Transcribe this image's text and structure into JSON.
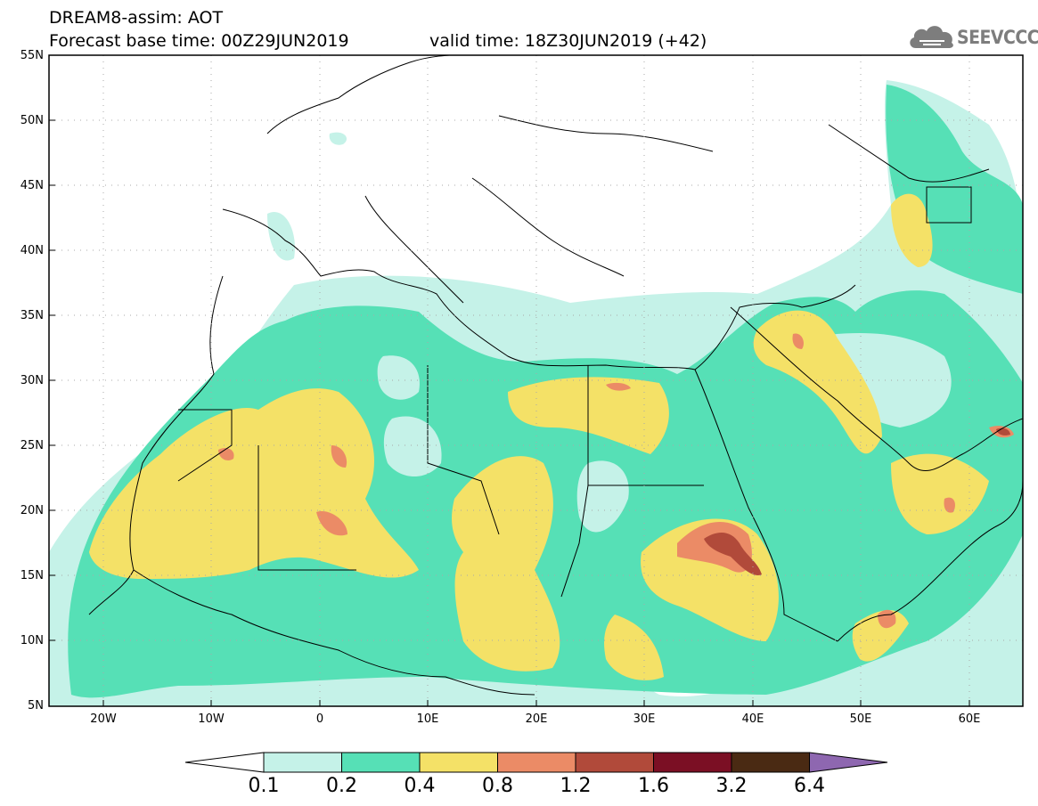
{
  "title": {
    "product": "DREAM8-assim: AOT",
    "base_time": "Forecast base time: 00Z29JUN2019",
    "valid_time": "valid time: 18Z30JUN2019 (+42)"
  },
  "logo": {
    "text": "SEEVCCC",
    "icon": "cloud-icon",
    "color": "#7d7d7d"
  },
  "map": {
    "lon_range": [
      -25,
      65
    ],
    "lat_range": [
      5,
      55
    ],
    "lat_ticks": [
      "55N",
      "50N",
      "45N",
      "40N",
      "35N",
      "30N",
      "25N",
      "20N",
      "15N",
      "10N",
      "5N"
    ],
    "lon_ticks": [
      "20W",
      "10W",
      "0",
      "10E",
      "20E",
      "30E",
      "40E",
      "50E",
      "60E"
    ],
    "grid": "dotted"
  },
  "colorbar": {
    "levels": [
      "0.1",
      "0.2",
      "0.4",
      "0.8",
      "1.2",
      "1.6",
      "3.2",
      "6.4"
    ],
    "colors": [
      "#c5f2e8",
      "#56e0b6",
      "#f4e167",
      "#eb8b66",
      "#b14a3a",
      "#7b0f24",
      "#4a2a13",
      "#8e67b0"
    ]
  }
}
